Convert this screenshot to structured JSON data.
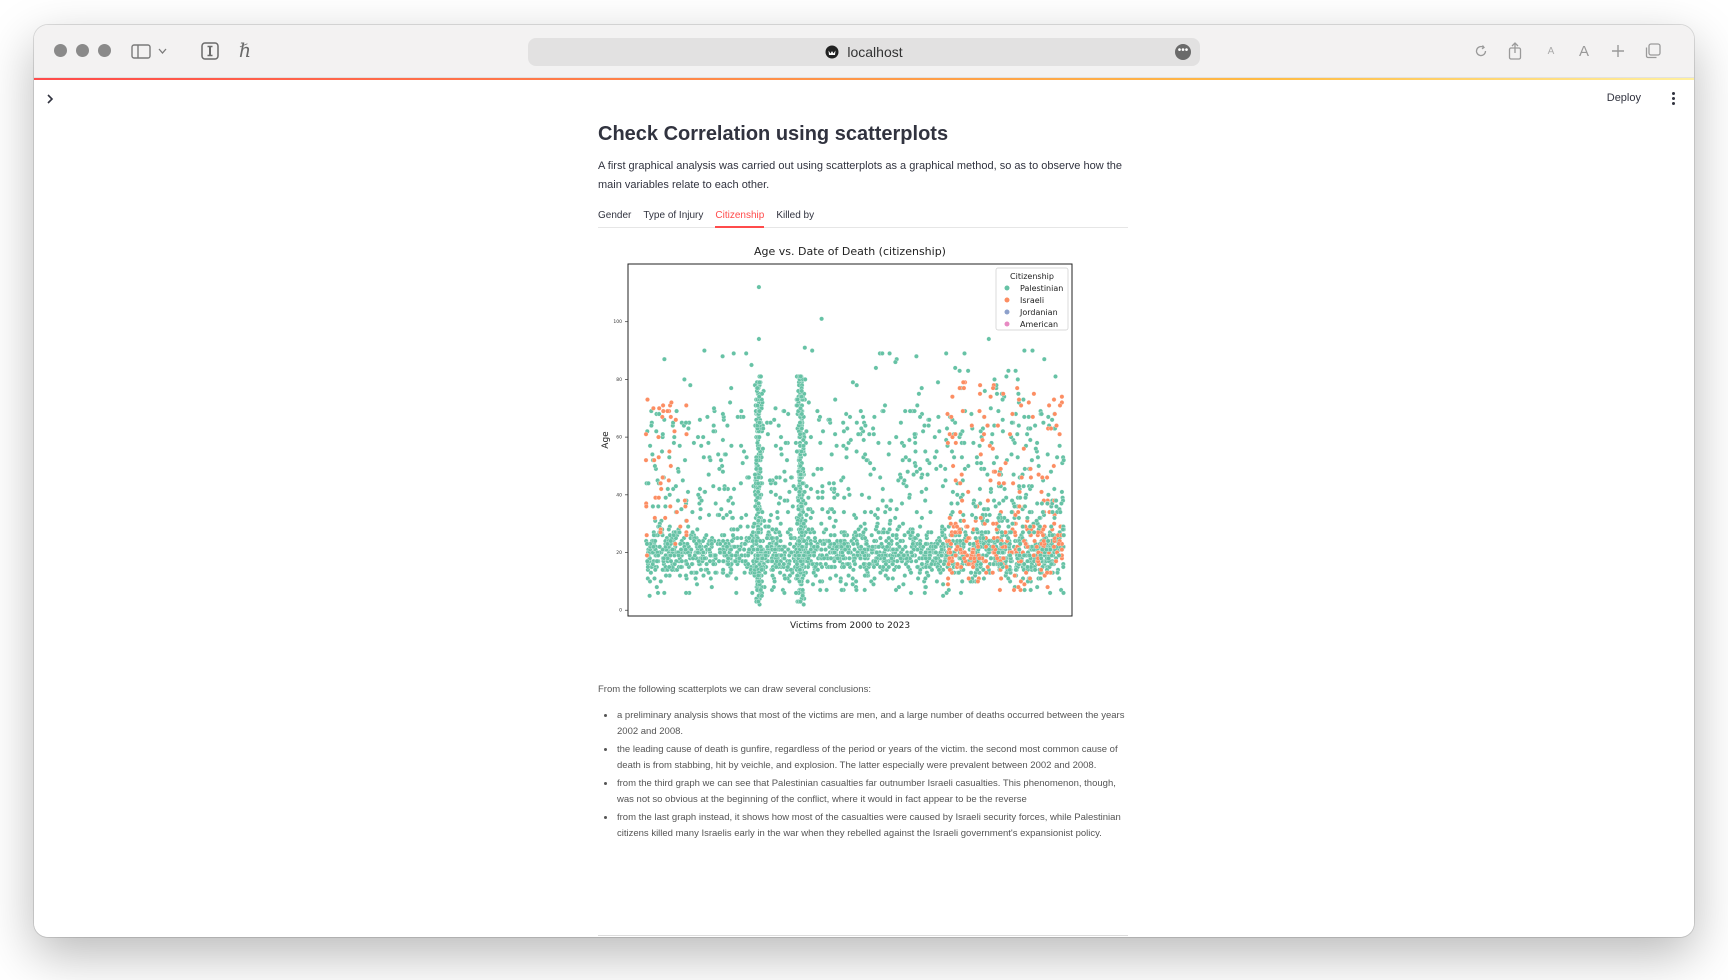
{
  "browser": {
    "url": "localhost"
  },
  "app": {
    "deploy_label": "Deploy"
  },
  "page": {
    "title": "Check Correlation using scatterplots",
    "intro": "A first graphical analysis was carried out using scatterplots as a graphical method, so as to observe how the main variables relate to each other.",
    "tabs": [
      "Gender",
      "Type of Injury",
      "Citizenship",
      "Killed by"
    ],
    "active_tab": "Citizenship",
    "conclusions_intro": "From the following scatterplots we can draw several conclusions:",
    "conclusions": [
      "a preliminary analysis shows that most of the victims are men, and a large number of deaths occurred between the years 2002 and 2008.",
      "the leading cause of death is gunfire, regardless of the period or years of the victim. the second most common cause of death is from stabbing, hit by veichle, and explosion. The latter especially were prevalent between 2002 and 2008.",
      "from the third graph we can see that Palestinian casualties far outnumber Israeli casualties. This phenomenon, though, was not so obvious at the beginning of the conflict, where it would in fact appear to be the reverse",
      "from the last graph instead, it shows how most of the casualties were caused by Israeli security forces, while Palestinian citizens killed many Israelis early in the war when they rebelled against the Israeli government's expansionist policy."
    ]
  },
  "chart_data": {
    "type": "scatter",
    "title": "Age vs. Date of Death (citizenship)",
    "xlabel": "Victims from 2000 to 2023",
    "ylabel": "Age",
    "ylim": [
      -2,
      120
    ],
    "yticks": [
      0,
      20,
      40,
      60,
      80,
      100
    ],
    "legend_title": "Citizenship",
    "legend_position": "top-right",
    "series": [
      {
        "name": "Palestinian",
        "color": "#66c2a5"
      },
      {
        "name": "Israeli",
        "color": "#fc8d62"
      },
      {
        "name": "Jordanian",
        "color": "#8da0cb"
      },
      {
        "name": "American",
        "color": "#e78ac3"
      }
    ]
  }
}
